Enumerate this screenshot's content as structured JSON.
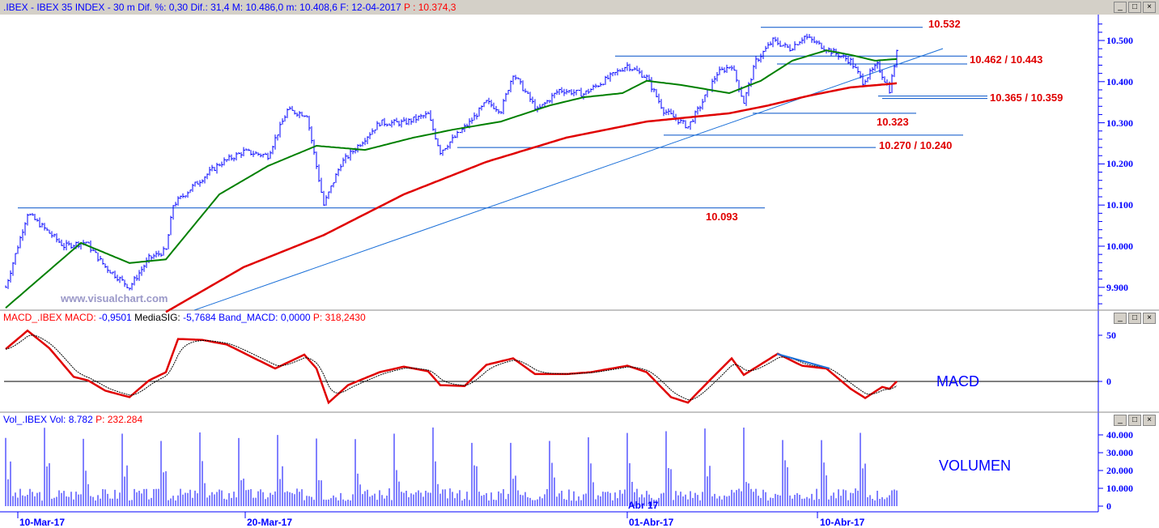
{
  "price_window": {
    "symbol": ".IBEX - IBEX 35 INDEX - ",
    "timeframe": " 30 m ",
    "dif_pct": "Dif. %: 0,30 ",
    "dif": " Dif.: 31,4 ",
    "max": " M: 10.486,0 ",
    "min": " m: 10.408,6 ",
    "date": " F: 12-04-2017 ",
    "price": "P : 10.374,3"
  },
  "macd_window": {
    "name": "MACD_.IBEX MACD:",
    "macd": " -0,9501",
    "sig_label": " MediaSIG:",
    "sig": " -5,7684",
    "band": " Band_MACD: 0,0000",
    "price": " P: 318,2430",
    "panel_label": "MACD"
  },
  "vol_window": {
    "name": "Vol_.IBEX Vol: 8.782",
    "price": " P: 232.284",
    "panel_label": "VOLUMEN"
  },
  "watermark": "www.visualchart.com",
  "window_buttons": {
    "min": "_",
    "max": "□",
    "close": "×"
  },
  "levels": [
    {
      "label": "10.532",
      "values": [
        10532
      ]
    },
    {
      "label": "10.462 / 10.443",
      "values": [
        10462,
        10443
      ]
    },
    {
      "label": "10.365 / 10.359",
      "values": [
        10365,
        10359
      ]
    },
    {
      "label": "10.323",
      "values": [
        10323
      ]
    },
    {
      "label": "10.270 / 10.240",
      "values": [
        10270,
        10240
      ]
    },
    {
      "label": "10.093",
      "values": [
        10093
      ]
    }
  ],
  "chart_data": [
    {
      "type": "line",
      "title": "IBEX 35 INDEX 30 m",
      "yticks": [
        "10.500",
        "10.400",
        "10.300",
        "10.200",
        "10.100",
        "10.000",
        "9.900"
      ],
      "ylim": [
        9840,
        10560
      ],
      "xticks": [
        "10-Mar-17",
        "20-Mar-17",
        "01-Abr-17",
        "10-Abr-17"
      ],
      "extra_xlabel": "Abr 17",
      "close": [
        [
          0,
          9900
        ],
        [
          9,
          10080
        ],
        [
          24,
          10000
        ],
        [
          33,
          10010
        ],
        [
          41,
          9950
        ],
        [
          51,
          9900
        ],
        [
          59,
          9970
        ],
        [
          66,
          9990
        ],
        [
          69,
          10100
        ],
        [
          78,
          10150
        ],
        [
          88,
          10200
        ],
        [
          98,
          10230
        ],
        [
          108,
          10220
        ],
        [
          116,
          10330
        ],
        [
          124,
          10320
        ],
        [
          131,
          10100
        ],
        [
          138,
          10200
        ],
        [
          146,
          10250
        ],
        [
          154,
          10300
        ],
        [
          164,
          10300
        ],
        [
          174,
          10320
        ],
        [
          179,
          10230
        ],
        [
          191,
          10300
        ],
        [
          198,
          10350
        ],
        [
          204,
          10330
        ],
        [
          209,
          10420
        ],
        [
          219,
          10330
        ],
        [
          228,
          10380
        ],
        [
          238,
          10370
        ],
        [
          246,
          10400
        ],
        [
          256,
          10440
        ],
        [
          264,
          10410
        ],
        [
          271,
          10330
        ],
        [
          281,
          10290
        ],
        [
          286,
          10340
        ],
        [
          293,
          10420
        ],
        [
          299,
          10440
        ],
        [
          304,
          10350
        ],
        [
          309,
          10450
        ],
        [
          316,
          10500
        ],
        [
          323,
          10480
        ],
        [
          329,
          10510
        ],
        [
          338,
          10480
        ],
        [
          348,
          10450
        ],
        [
          353,
          10400
        ],
        [
          359,
          10440
        ],
        [
          364,
          10380
        ],
        [
          367,
          10470
        ]
      ],
      "ma_green": [
        [
          0,
          9850
        ],
        [
          31,
          10008
        ],
        [
          51,
          9959
        ],
        [
          66,
          9968
        ],
        [
          88,
          10126
        ],
        [
          108,
          10195
        ],
        [
          128,
          10244
        ],
        [
          148,
          10234
        ],
        [
          168,
          10264
        ],
        [
          184,
          10283
        ],
        [
          204,
          10303
        ],
        [
          224,
          10342
        ],
        [
          238,
          10362
        ],
        [
          254,
          10372
        ],
        [
          264,
          10402
        ],
        [
          278,
          10392
        ],
        [
          298,
          10372
        ],
        [
          311,
          10402
        ],
        [
          324,
          10451
        ],
        [
          338,
          10476
        ],
        [
          348,
          10465
        ],
        [
          358,
          10451
        ],
        [
          367,
          10455
        ]
      ],
      "ma_red": [
        [
          66,
          9840
        ],
        [
          98,
          9949
        ],
        [
          131,
          10027
        ],
        [
          164,
          10126
        ],
        [
          198,
          10205
        ],
        [
          231,
          10264
        ],
        [
          264,
          10303
        ],
        [
          298,
          10323
        ],
        [
          314,
          10342
        ],
        [
          331,
          10366
        ],
        [
          348,
          10386
        ],
        [
          367,
          10396
        ]
      ]
    },
    {
      "type": "line",
      "title": "MACD",
      "yticks": [
        "50",
        "0"
      ],
      "ylim": [
        -30,
        60
      ],
      "macd": [
        [
          0,
          35
        ],
        [
          9,
          55
        ],
        [
          18,
          36
        ],
        [
          28,
          5
        ],
        [
          34,
          1
        ],
        [
          41,
          -10
        ],
        [
          51,
          -17
        ],
        [
          59,
          1
        ],
        [
          66,
          10
        ],
        [
          71,
          46
        ],
        [
          81,
          45
        ],
        [
          91,
          40
        ],
        [
          101,
          27
        ],
        [
          111,
          14
        ],
        [
          123,
          29
        ],
        [
          128,
          14
        ],
        [
          133,
          -23
        ],
        [
          141,
          -4
        ],
        [
          154,
          10
        ],
        [
          164,
          16
        ],
        [
          174,
          11
        ],
        [
          179,
          -4
        ],
        [
          189,
          -5
        ],
        [
          198,
          18
        ],
        [
          209,
          25
        ],
        [
          218,
          8
        ],
        [
          231,
          8
        ],
        [
          241,
          10
        ],
        [
          256,
          17
        ],
        [
          264,
          10
        ],
        [
          274,
          -17
        ],
        [
          281,
          -23
        ],
        [
          288,
          -4
        ],
        [
          299,
          25
        ],
        [
          304,
          7
        ],
        [
          318,
          30
        ],
        [
          328,
          17
        ],
        [
          338,
          14
        ],
        [
          348,
          -8
        ],
        [
          354,
          -18
        ],
        [
          361,
          -6
        ],
        [
          364,
          -8
        ],
        [
          367,
          0
        ]
      ]
    },
    {
      "type": "bar",
      "title": "VOLUMEN",
      "yticks": [
        "40.000",
        "30.000",
        "20.000",
        "10.000",
        "0"
      ],
      "ylim": [
        0,
        45000
      ],
      "last_value": 8782
    }
  ]
}
